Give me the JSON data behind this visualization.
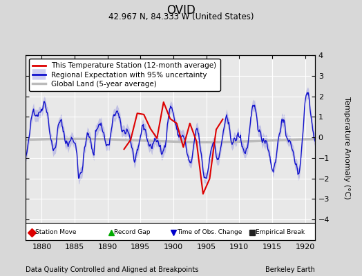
{
  "title": "OVID",
  "subtitle": "42.967 N, 84.333 W (United States)",
  "xlabel_left": "Data Quality Controlled and Aligned at Breakpoints",
  "xlabel_right": "Berkeley Earth",
  "ylabel": "Temperature Anomaly (°C)",
  "xlim": [
    1877.5,
    1921.5
  ],
  "ylim": [
    -5,
    4
  ],
  "yticks": [
    -4,
    -3,
    -2,
    -1,
    0,
    1,
    2,
    3,
    4
  ],
  "xticks": [
    1880,
    1885,
    1890,
    1895,
    1900,
    1905,
    1910,
    1915,
    1920
  ],
  "bg_color": "#d8d8d8",
  "plot_bg_color": "#e8e8e8",
  "grid_color": "#ffffff",
  "red_line_color": "#dd0000",
  "blue_line_color": "#1111cc",
  "blue_fill_color": "#8888dd",
  "gray_line_color": "#bbbbbb",
  "seed": 42
}
